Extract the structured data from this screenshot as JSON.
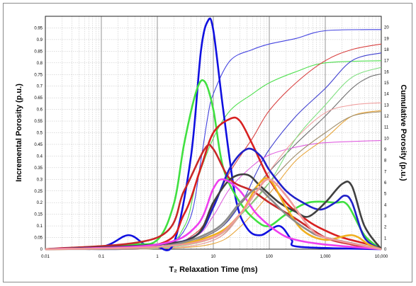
{
  "chart_data": {
    "type": "line",
    "xlabel": "T₂ Relaxation Time (ms)",
    "ylabel_left": "Incremental Porosity (p.u.)",
    "ylabel_right": "Cumulative Porosity (p.u.)",
    "x_scale": "log",
    "xlim": [
      0.01,
      10000
    ],
    "x_ticks": [
      0.01,
      0.1,
      1,
      10,
      100,
      1000,
      10000
    ],
    "x_tick_labels": [
      "0.01",
      "0.1",
      "1",
      "10",
      "100",
      "1,000",
      "10,000"
    ],
    "ylim_left": [
      0,
      1.0
    ],
    "y_left_ticks": [
      0,
      0.05,
      0.1,
      0.15,
      0.2,
      0.25,
      0.3,
      0.35,
      0.4,
      0.45,
      0.5,
      0.55,
      0.6,
      0.65,
      0.7,
      0.75,
      0.8,
      0.85,
      0.9,
      0.95
    ],
    "y_left_tick_labels": [
      "0",
      "0.05",
      "0.1",
      "0.15",
      "0.2",
      "0.25",
      "0.3",
      "0.35",
      "0.4",
      "0.45",
      "0.5",
      "0.55",
      "0.6",
      "0.65",
      "0.7",
      "0.75",
      "0.8",
      "0.85",
      "0.9",
      "0.95"
    ],
    "ylim_right": [
      0,
      21
    ],
    "y_right_ticks": [
      0,
      1,
      2,
      3,
      4,
      5,
      6,
      7,
      8,
      9,
      10,
      11,
      12,
      13,
      14,
      15,
      16,
      17,
      18,
      19,
      20
    ],
    "y_right_tick_labels": [
      "0",
      "1",
      "2",
      "3",
      "4",
      "5",
      "6",
      "7",
      "8",
      "9",
      "10",
      "11",
      "12",
      "13",
      "14",
      "15",
      "16",
      "17",
      "18",
      "19",
      "20"
    ],
    "grid": true,
    "incremental_series": [
      {
        "color": "#1010e0",
        "points": [
          [
            0.01,
            0
          ],
          [
            0.1,
            0.01
          ],
          [
            0.3,
            0.06
          ],
          [
            0.6,
            0.02
          ],
          [
            1,
            0.01
          ],
          [
            2,
            0.03
          ],
          [
            4,
            0.4
          ],
          [
            6,
            0.85
          ],
          [
            8,
            0.98
          ],
          [
            10,
            0.94
          ],
          [
            15,
            0.6
          ],
          [
            25,
            0.22
          ],
          [
            40,
            0.09
          ],
          [
            70,
            0.06
          ],
          [
            150,
            0.1
          ],
          [
            250,
            0.04
          ],
          [
            350,
            0.01
          ],
          [
            10000,
            0
          ]
        ]
      },
      {
        "color": "#40e040",
        "points": [
          [
            0.01,
            0
          ],
          [
            0.3,
            0.02
          ],
          [
            1,
            0.04
          ],
          [
            2,
            0.2
          ],
          [
            3,
            0.45
          ],
          [
            5,
            0.68
          ],
          [
            7,
            0.72
          ],
          [
            10,
            0.6
          ],
          [
            15,
            0.35
          ],
          [
            30,
            0.2
          ],
          [
            60,
            0.12
          ],
          [
            100,
            0.1
          ],
          [
            200,
            0.15
          ],
          [
            500,
            0.2
          ],
          [
            1500,
            0.2
          ],
          [
            2500,
            0.19
          ],
          [
            5000,
            0.06
          ],
          [
            10000,
            0
          ]
        ]
      },
      {
        "color": "#d82020",
        "points": [
          [
            0.01,
            0
          ],
          [
            1,
            0.02
          ],
          [
            3,
            0.15
          ],
          [
            6,
            0.35
          ],
          [
            10,
            0.5
          ],
          [
            20,
            0.56
          ],
          [
            30,
            0.55
          ],
          [
            50,
            0.45
          ],
          [
            100,
            0.3
          ],
          [
            200,
            0.2
          ],
          [
            500,
            0.12
          ],
          [
            1000,
            0.08
          ],
          [
            2000,
            0.05
          ],
          [
            6000,
            0.02
          ],
          [
            10000,
            0
          ]
        ]
      },
      {
        "color": "#c82828",
        "points": [
          [
            0.01,
            0
          ],
          [
            1,
            0.05
          ],
          [
            3,
            0.25
          ],
          [
            7,
            0.43
          ],
          [
            10,
            0.43
          ],
          [
            20,
            0.3
          ],
          [
            50,
            0.25
          ],
          [
            100,
            0.2
          ],
          [
            300,
            0.13
          ],
          [
            1000,
            0.05
          ],
          [
            3000,
            0.02
          ],
          [
            10000,
            0
          ]
        ]
      },
      {
        "color": "#2020c8",
        "points": [
          [
            0.01,
            0
          ],
          [
            1,
            0.02
          ],
          [
            5,
            0.06
          ],
          [
            10,
            0.18
          ],
          [
            20,
            0.35
          ],
          [
            40,
            0.43
          ],
          [
            70,
            0.4
          ],
          [
            100,
            0.34
          ],
          [
            200,
            0.25
          ],
          [
            400,
            0.2
          ],
          [
            800,
            0.17
          ],
          [
            1500,
            0.2
          ],
          [
            2200,
            0.23
          ],
          [
            3000,
            0.2
          ],
          [
            5000,
            0.05
          ],
          [
            10000,
            0
          ]
        ]
      },
      {
        "color": "#404040",
        "points": [
          [
            0.01,
            0
          ],
          [
            1,
            0.02
          ],
          [
            5,
            0.06
          ],
          [
            10,
            0.2
          ],
          [
            20,
            0.3
          ],
          [
            40,
            0.32
          ],
          [
            70,
            0.27
          ],
          [
            150,
            0.2
          ],
          [
            300,
            0.16
          ],
          [
            500,
            0.14
          ],
          [
            1000,
            0.2
          ],
          [
            2000,
            0.28
          ],
          [
            3000,
            0.27
          ],
          [
            5000,
            0.1
          ],
          [
            10000,
            0
          ]
        ]
      },
      {
        "color": "#ee3fee",
        "points": [
          [
            0.01,
            0
          ],
          [
            1,
            0.02
          ],
          [
            5,
            0.1
          ],
          [
            10,
            0.26
          ],
          [
            15,
            0.3
          ],
          [
            30,
            0.25
          ],
          [
            60,
            0.15
          ],
          [
            150,
            0.07
          ],
          [
            300,
            0.04
          ],
          [
            1000,
            0.02
          ],
          [
            10000,
            0
          ]
        ]
      },
      {
        "color": "#f0b020",
        "points": [
          [
            0.01,
            0
          ],
          [
            1,
            0.01
          ],
          [
            10,
            0.06
          ],
          [
            30,
            0.15
          ],
          [
            60,
            0.27
          ],
          [
            100,
            0.3
          ],
          [
            200,
            0.18
          ],
          [
            400,
            0.08
          ],
          [
            1000,
            0.04
          ],
          [
            3000,
            0.06
          ],
          [
            6000,
            0.02
          ],
          [
            10000,
            0
          ]
        ]
      },
      {
        "color": "#8a8a8a",
        "points": [
          [
            0.01,
            0
          ],
          [
            1,
            0.01
          ],
          [
            10,
            0.08
          ],
          [
            30,
            0.2
          ],
          [
            60,
            0.26
          ],
          [
            100,
            0.22
          ],
          [
            200,
            0.15
          ],
          [
            500,
            0.08
          ],
          [
            1000,
            0.05
          ],
          [
            10000,
            0
          ]
        ]
      },
      {
        "color": "#f09a9a",
        "points": [
          [
            0.01,
            0
          ],
          [
            1,
            0.01
          ],
          [
            10,
            0.05
          ],
          [
            30,
            0.15
          ],
          [
            60,
            0.25
          ],
          [
            100,
            0.3
          ],
          [
            200,
            0.23
          ],
          [
            500,
            0.1
          ],
          [
            1000,
            0.05
          ],
          [
            10000,
            0
          ]
        ]
      }
    ],
    "cumulative_series": [
      {
        "color": "#4444e0",
        "points": [
          [
            0.01,
            0
          ],
          [
            1,
            0.3
          ],
          [
            2,
            0.6
          ],
          [
            4,
            3
          ],
          [
            6,
            8
          ],
          [
            8,
            12
          ],
          [
            10,
            14
          ],
          [
            20,
            17
          ],
          [
            50,
            18
          ],
          [
            100,
            18.5
          ],
          [
            300,
            19
          ],
          [
            1000,
            19.7
          ],
          [
            10000,
            19.8
          ]
        ]
      },
      {
        "color": "#50e050",
        "points": [
          [
            0.01,
            0
          ],
          [
            1,
            0.4
          ],
          [
            3,
            2
          ],
          [
            5,
            6
          ],
          [
            10,
            10
          ],
          [
            20,
            12.5
          ],
          [
            50,
            14
          ],
          [
            100,
            15
          ],
          [
            300,
            16
          ],
          [
            1000,
            16.8
          ],
          [
            10000,
            17
          ]
        ]
      },
      {
        "color": "#d84040",
        "points": [
          [
            0.01,
            0
          ],
          [
            1,
            0.2
          ],
          [
            5,
            1.5
          ],
          [
            10,
            4
          ],
          [
            20,
            7
          ],
          [
            50,
            10
          ],
          [
            100,
            12.5
          ],
          [
            300,
            15
          ],
          [
            1000,
            17
          ],
          [
            3000,
            18
          ],
          [
            10000,
            18.5
          ]
        ]
      },
      {
        "color": "#4040d0",
        "points": [
          [
            0.01,
            0
          ],
          [
            1,
            0.1
          ],
          [
            10,
            1.5
          ],
          [
            30,
            4
          ],
          [
            60,
            7
          ],
          [
            100,
            9
          ],
          [
            300,
            12
          ],
          [
            1000,
            14.5
          ],
          [
            3000,
            17
          ],
          [
            10000,
            17.7
          ]
        ]
      },
      {
        "color": "#707070",
        "points": [
          [
            0.01,
            0
          ],
          [
            1,
            0.1
          ],
          [
            10,
            1.5
          ],
          [
            30,
            4
          ],
          [
            100,
            7
          ],
          [
            300,
            9.5
          ],
          [
            1000,
            12
          ],
          [
            3000,
            14.5
          ],
          [
            6000,
            15.5
          ],
          [
            10000,
            15.8
          ]
        ]
      },
      {
        "color": "#e060e0",
        "points": [
          [
            0.01,
            0
          ],
          [
            1,
            0.2
          ],
          [
            5,
            1.2
          ],
          [
            10,
            3
          ],
          [
            20,
            5.5
          ],
          [
            50,
            7.5
          ],
          [
            100,
            8.5
          ],
          [
            300,
            9.2
          ],
          [
            1000,
            9.6
          ],
          [
            10000,
            9.8
          ]
        ]
      },
      {
        "color": "#e8a840",
        "points": [
          [
            0.01,
            0
          ],
          [
            1,
            0.05
          ],
          [
            10,
            0.5
          ],
          [
            30,
            2
          ],
          [
            100,
            5
          ],
          [
            300,
            8
          ],
          [
            1000,
            10
          ],
          [
            3000,
            12
          ],
          [
            10000,
            12.5
          ]
        ]
      },
      {
        "color": "#a09070",
        "points": [
          [
            0.01,
            0
          ],
          [
            1,
            0.05
          ],
          [
            10,
            0.8
          ],
          [
            30,
            3
          ],
          [
            100,
            6
          ],
          [
            300,
            8.5
          ],
          [
            1000,
            10.5
          ],
          [
            3000,
            12
          ],
          [
            10000,
            12.4
          ]
        ]
      },
      {
        "color": "#f0a0a0",
        "points": [
          [
            0.01,
            0
          ],
          [
            1,
            0.05
          ],
          [
            10,
            0.8
          ],
          [
            30,
            3
          ],
          [
            100,
            7
          ],
          [
            300,
            10
          ],
          [
            1000,
            12.3
          ],
          [
            3000,
            13
          ],
          [
            10000,
            13.2
          ]
        ]
      },
      {
        "color": "#80e080",
        "points": [
          [
            0.01,
            0
          ],
          [
            1,
            0.1
          ],
          [
            10,
            1
          ],
          [
            30,
            3
          ],
          [
            100,
            6
          ],
          [
            300,
            10
          ],
          [
            1000,
            13
          ],
          [
            3000,
            15.5
          ],
          [
            10000,
            16.4
          ]
        ]
      }
    ]
  }
}
